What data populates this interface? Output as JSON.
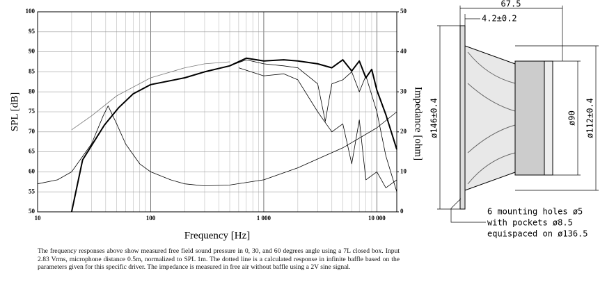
{
  "chart_data": {
    "type": "line",
    "xlabel": "Frequency [Hz]",
    "ylabel": "SPL [dB]",
    "y2label": "Impedance [ohm]",
    "xscale": "log",
    "grid": true,
    "xlim": [
      10,
      15000
    ],
    "xticks": [
      10,
      100,
      {
        "value": 1000,
        "label": "1 000"
      },
      {
        "value": 10000,
        "label": "10 000"
      }
    ],
    "xminorticks": [
      20,
      30,
      40,
      50,
      60,
      70,
      80,
      90,
      200,
      300,
      400,
      500,
      600,
      700,
      800,
      900,
      2000,
      3000,
      4000,
      5000,
      6000,
      7000,
      8000,
      9000
    ],
    "ylim": [
      50,
      100
    ],
    "yticks": [
      50,
      55,
      60,
      65,
      70,
      75,
      80,
      85,
      90,
      95,
      100
    ],
    "y2lim": [
      0,
      50
    ],
    "y2ticks": [
      0,
      10,
      20,
      30,
      40,
      50
    ],
    "series": [
      {
        "color": "#000000",
        "line_width": 2,
        "x": [
          20,
          25,
          39,
          52,
          70,
          100,
          200,
          300,
          500,
          700,
          1000,
          1500,
          2000,
          3000,
          4000,
          5000,
          6000,
          7000,
          8000,
          9000,
          10000,
          12000,
          15000
        ],
        "values": [
          50,
          63,
          71.7,
          76,
          79.5,
          81.8,
          83.5,
          85,
          86.5,
          88.4,
          87.7,
          88,
          87.7,
          87,
          86,
          88,
          85.2,
          87.7,
          83.5,
          85.6,
          80.4,
          74.3,
          65.6
        ]
      },
      {
        "color": "#000000",
        "line_width": 0.8,
        "x": [
          500,
          700,
          1000,
          1500,
          2000,
          3000,
          3500,
          4000,
          5000,
          6000,
          7000,
          8000,
          10000,
          12000,
          15000
        ],
        "values": [
          86.5,
          88,
          87,
          86.5,
          86,
          82,
          72.6,
          82,
          83,
          85,
          80,
          84,
          75,
          64,
          55
        ]
      },
      {
        "color": "#000000",
        "line_width": 0.8,
        "x": [
          600,
          1000,
          1500,
          2000,
          3000,
          4000,
          5000,
          6000,
          7000,
          8000,
          10000,
          12000,
          15000
        ],
        "values": [
          86,
          84,
          84.5,
          83,
          75,
          70,
          72,
          62,
          73,
          58,
          60,
          56,
          58
        ]
      },
      {
        "color": "#777777",
        "line_width": 0.8,
        "x": [
          20,
          30,
          50,
          100,
          200,
          300,
          500
        ],
        "values": [
          70.5,
          74,
          79,
          83.5,
          86,
          87,
          87.5
        ]
      },
      {
        "color": "#000000",
        "line_width": 0.8,
        "axis": "y2",
        "x": [
          10,
          15,
          20,
          30,
          38,
          42,
          50,
          60,
          80,
          100,
          150,
          200,
          300,
          500,
          1000,
          2000,
          5000,
          10000,
          15000
        ],
        "values": [
          7,
          8,
          10,
          17,
          24,
          26.5,
          22,
          17,
          12,
          10,
          8,
          7,
          6.5,
          6.7,
          8,
          11,
          16,
          21,
          25
        ]
      }
    ]
  },
  "caption": "The frequency responses above show measured free field sound pressure in 0, 30, and 60 degrees angle using a 7L closed box. Input 2.83 Vrms, microphone distance 0.5m, normalized to SPL 1m. The dotted line is a calculated response in infinite baffle based on the parameters given for this specific driver. The impedance is measured in free air without baffle using a 2V sine signal.",
  "drawing": {
    "depth": "67.5",
    "flange": "4.2±0.2",
    "outer_diameter": "ø146±0.4",
    "magnet_diameter": "ø90",
    "rear_diameter": "ø112±0.4",
    "mounting": [
      "6 mounting holes ø5",
      "with pockets ø8.5",
      "equispaced on ø136.5"
    ]
  }
}
